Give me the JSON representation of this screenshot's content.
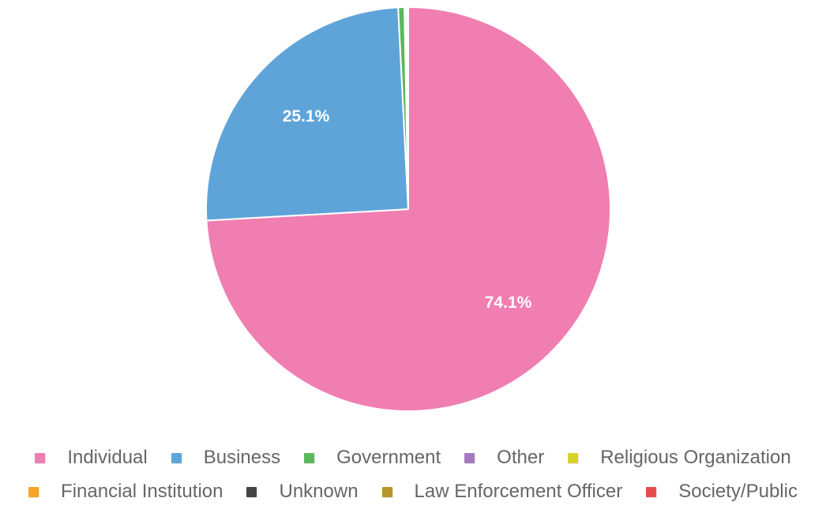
{
  "chart_data": {
    "type": "pie",
    "title": "",
    "slices": [
      {
        "label": "Individual",
        "value": 74.1,
        "color": "#f07eb1",
        "data_label": "74.1%"
      },
      {
        "label": "Business",
        "value": 25.1,
        "color": "#5ea4d9",
        "data_label": "25.1%"
      },
      {
        "label": "Government",
        "value": 0.5,
        "color": "#5cb85c",
        "data_label": ""
      },
      {
        "label": "Other",
        "value": 0.1,
        "color": "#a57bbf",
        "data_label": ""
      },
      {
        "label": "Religious Organization",
        "value": 0.05,
        "color": "#d8d32a",
        "data_label": ""
      },
      {
        "label": "Financial Institution",
        "value": 0.05,
        "color": "#f5a623",
        "data_label": ""
      },
      {
        "label": "Unknown",
        "value": 0.05,
        "color": "#444444",
        "data_label": ""
      },
      {
        "label": "Law Enforcement Officer",
        "value": 0.03,
        "color": "#b8962e",
        "data_label": ""
      },
      {
        "label": "Society/Public",
        "value": 0.02,
        "color": "#e84d4d",
        "data_label": ""
      }
    ],
    "legend": {
      "placement": "bottom",
      "rows": [
        [
          "Individual",
          "Business",
          "Government",
          "Other",
          "Religious Organization"
        ],
        [
          "Financial Institution",
          "Unknown",
          "Law Enforcement Officer",
          "Society/Public"
        ]
      ]
    }
  }
}
